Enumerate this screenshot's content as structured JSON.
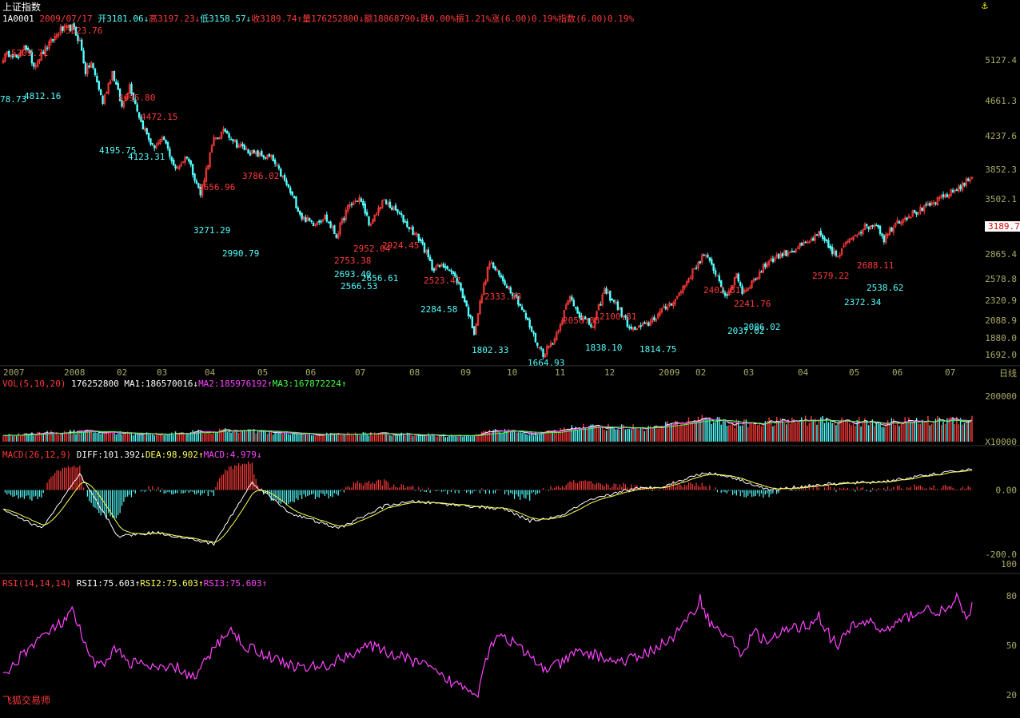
{
  "header": {
    "title": "上证指数",
    "code": "1A0001",
    "date": "2009/07/17",
    "fields": [
      {
        "text": "开3181.06",
        "color": "#55ffff",
        "arrow": "↓"
      },
      {
        "text": "高3197.23",
        "color": "#ff3b3b",
        "arrow": "↓"
      },
      {
        "text": "低3158.57",
        "color": "#55ffff",
        "arrow": "↓"
      },
      {
        "text": "收3189.74",
        "color": "#ff3b3b",
        "arrow": "↑"
      },
      {
        "text": "量176252800",
        "color": "#ff3b3b",
        "arrow": "↓"
      },
      {
        "text": "额18868790",
        "color": "#ff3b3b",
        "arrow": "↓"
      },
      {
        "text": "跌0.00%",
        "color": "#ff3b3b",
        "arrow": ""
      },
      {
        "text": "振1.21%",
        "color": "#ff3b3b",
        "arrow": ""
      },
      {
        "text": "涨(6.00)0.19%",
        "color": "#ff3b3b",
        "arrow": ""
      },
      {
        "text": "指数(6.00)0.19%",
        "color": "#ff3b3b",
        "arrow": ""
      }
    ]
  },
  "last_price_label": "3189.7",
  "price_axis_labels": [
    "5127.4",
    "4661.3",
    "4237.6",
    "3852.3",
    "3502.1",
    "2865.4",
    "2578.8",
    "2320.9",
    "2088.9",
    "1880.0",
    "1692.0"
  ],
  "time_axis": [
    "2007",
    "2008",
    "02",
    "03",
    "04",
    "05",
    "06",
    "07",
    "08",
    "09",
    "10",
    "11",
    "12",
    "2009",
    "02",
    "03",
    "04",
    "05",
    "06",
    "07"
  ],
  "time_axis_suffix": "日线",
  "annotations": [
    {
      "text": "5523.76",
      "color": "red"
    },
    {
      "text": "5209.71",
      "color": "red"
    },
    {
      "text": "78.73",
      "color": "cyan"
    },
    {
      "text": "4812.16",
      "color": "cyan"
    },
    {
      "text": "4695.80",
      "color": "red"
    },
    {
      "text": "4472.15",
      "color": "red"
    },
    {
      "text": "4195.75",
      "color": "cyan"
    },
    {
      "text": "4123.31",
      "color": "cyan"
    },
    {
      "text": "3656.96",
      "color": "red"
    },
    {
      "text": "3786.02",
      "color": "red"
    },
    {
      "text": "3271.29",
      "color": "cyan"
    },
    {
      "text": "2990.79",
      "color": "cyan"
    },
    {
      "text": "2952.04",
      "color": "red"
    },
    {
      "text": "2753.38",
      "color": "red"
    },
    {
      "text": "2924.45",
      "color": "red"
    },
    {
      "text": "2693.40",
      "color": "cyan"
    },
    {
      "text": "2656.61",
      "color": "cyan"
    },
    {
      "text": "2566.53",
      "color": "cyan"
    },
    {
      "text": "2523.47",
      "color": "red"
    },
    {
      "text": "2284.58",
      "color": "cyan"
    },
    {
      "text": "2333.28",
      "color": "red"
    },
    {
      "text": "1802.33",
      "color": "cyan"
    },
    {
      "text": "1664.93",
      "color": "cyan"
    },
    {
      "text": "2050.88",
      "color": "red"
    },
    {
      "text": "2100.81",
      "color": "red"
    },
    {
      "text": "1838.10",
      "color": "cyan"
    },
    {
      "text": "1814.75",
      "color": "cyan"
    },
    {
      "text": "2402.81",
      "color": "red"
    },
    {
      "text": "2241.76",
      "color": "red"
    },
    {
      "text": "2037.02",
      "color": "cyan"
    },
    {
      "text": "2086.02",
      "color": "cyan"
    },
    {
      "text": "2579.22",
      "color": "red"
    },
    {
      "text": "2372.34",
      "color": "cyan"
    },
    {
      "text": "2688.11",
      "color": "red"
    },
    {
      "text": "2538.62",
      "color": "cyan"
    }
  ],
  "vol_panel": {
    "title": "VOL(5,10,20)",
    "value": "176252800",
    "items": [
      {
        "text": "MA1:186570016",
        "color": "#ffffff",
        "arrow": "↓"
      },
      {
        "text": "MA2:185976192",
        "color": "#ff44ff",
        "arrow": "↑"
      },
      {
        "text": "MA3:167872224",
        "color": "#44ff44",
        "arrow": "↑"
      }
    ],
    "axis_top": "200000",
    "axis_unit": "X10000"
  },
  "macd_panel": {
    "title": "MACD(26,12,9)",
    "items": [
      {
        "text": "DIFF:101.392",
        "color": "#ffffff",
        "arrow": "↓"
      },
      {
        "text": "DEA:98.902",
        "color": "#ffff55",
        "arrow": "↑"
      },
      {
        "text": "MACD:4.979",
        "color": "#ff44ff",
        "arrow": "↓"
      }
    ],
    "axis_labels": [
      "0.00",
      "-200.0"
    ]
  },
  "rsi_panel": {
    "title": "RSI(14,14,14)",
    "items": [
      {
        "text": "RSI1:75.603",
        "color": "#ffffff",
        "arrow": "↑"
      },
      {
        "text": "RSI2:75.603",
        "color": "#ffff55",
        "arrow": "↑"
      },
      {
        "text": "RSI3:75.603",
        "color": "#ff44ff",
        "arrow": "↑"
      }
    ],
    "axis_labels": [
      "100",
      "80",
      "50",
      "20"
    ]
  },
  "brand": "飞狐交易师",
  "colors": {
    "up": "#ff3b3b",
    "down": "#55ffff",
    "axis": "#aaaa66",
    "rsi": "#ff44ff"
  },
  "chart_data": {
    "type": "line",
    "title": "上证指数",
    "y_scale": "log",
    "close_key_points": [
      [
        0,
        4950
      ],
      [
        4,
        5050
      ],
      [
        8,
        4900
      ],
      [
        11,
        5209.71
      ],
      [
        16,
        4812.16
      ],
      [
        22,
        5100
      ],
      [
        30,
        5480
      ],
      [
        36,
        5523.76
      ],
      [
        40,
        5250
      ],
      [
        43,
        4700
      ],
      [
        46,
        4850
      ],
      [
        52,
        4195.75
      ],
      [
        57,
        4695.8
      ],
      [
        62,
        4123.31
      ],
      [
        66,
        4472.15
      ],
      [
        72,
        3900
      ],
      [
        78,
        3560
      ],
      [
        84,
        3656.96
      ],
      [
        90,
        3271.29
      ],
      [
        96,
        3450
      ],
      [
        103,
        2990.79
      ],
      [
        110,
        3650
      ],
      [
        116,
        3786.02
      ],
      [
        122,
        3600
      ],
      [
        130,
        3480
      ],
      [
        140,
        3420
      ],
      [
        148,
        3100
      ],
      [
        156,
        2750
      ],
      [
        162,
        2693.4
      ],
      [
        168,
        2753.38
      ],
      [
        174,
        2566.53
      ],
      [
        180,
        2850
      ],
      [
        186,
        2952.04
      ],
      [
        192,
        2656.61
      ],
      [
        198,
        2924.45
      ],
      [
        206,
        2800
      ],
      [
        212,
        2650
      ],
      [
        218,
        2523.47
      ],
      [
        224,
        2284.58
      ],
      [
        232,
        2300
      ],
      [
        238,
        2150
      ],
      [
        246,
        1802.33
      ],
      [
        254,
        2333.28
      ],
      [
        260,
        2200
      ],
      [
        268,
        2050
      ],
      [
        278,
        1750
      ],
      [
        282,
        1664.93
      ],
      [
        288,
        1760
      ],
      [
        296,
        2050.88
      ],
      [
        302,
        1900
      ],
      [
        308,
        1838.1
      ],
      [
        314,
        2100.81
      ],
      [
        320,
        2000
      ],
      [
        328,
        1814.75
      ],
      [
        336,
        1850
      ],
      [
        344,
        1950
      ],
      [
        352,
        2050
      ],
      [
        360,
        2250
      ],
      [
        366,
        2402.81
      ],
      [
        372,
        2250
      ],
      [
        378,
        2037.02
      ],
      [
        383,
        2241.76
      ],
      [
        386,
        2086.02
      ],
      [
        392,
        2180
      ],
      [
        400,
        2350
      ],
      [
        410,
        2420
      ],
      [
        420,
        2500
      ],
      [
        426,
        2579.22
      ],
      [
        432,
        2450
      ],
      [
        436,
        2372.34
      ],
      [
        442,
        2550
      ],
      [
        450,
        2650
      ],
      [
        456,
        2688.11
      ],
      [
        460,
        2538.62
      ],
      [
        466,
        2700
      ],
      [
        474,
        2780
      ],
      [
        482,
        2850
      ],
      [
        490,
        2950
      ],
      [
        498,
        3050
      ],
      [
        506,
        3189.74
      ]
    ],
    "volume_key_points": [
      [
        0,
        26
      ],
      [
        40,
        40
      ],
      [
        80,
        30
      ],
      [
        120,
        45
      ],
      [
        160,
        28
      ],
      [
        200,
        32
      ],
      [
        240,
        22
      ],
      [
        260,
        45
      ],
      [
        280,
        30
      ],
      [
        300,
        60
      ],
      [
        340,
        55
      ],
      [
        366,
        95
      ],
      [
        380,
        70
      ],
      [
        420,
        85
      ],
      [
        460,
        75
      ],
      [
        506,
        90
      ]
    ],
    "volume_axis_max": 200000,
    "macd_key_points": [
      [
        0,
        -50
      ],
      [
        20,
        -100
      ],
      [
        40,
        40
      ],
      [
        60,
        -120
      ],
      [
        80,
        -110
      ],
      [
        110,
        -140
      ],
      [
        130,
        20
      ],
      [
        150,
        -60
      ],
      [
        175,
        -100
      ],
      [
        200,
        -40
      ],
      [
        215,
        -30
      ],
      [
        240,
        -40
      ],
      [
        262,
        -50
      ],
      [
        275,
        -80
      ],
      [
        290,
        -70
      ],
      [
        305,
        -30
      ],
      [
        325,
        0
      ],
      [
        345,
        10
      ],
      [
        366,
        45
      ],
      [
        380,
        35
      ],
      [
        400,
        0
      ],
      [
        430,
        15
      ],
      [
        460,
        22
      ],
      [
        506,
        55
      ]
    ],
    "macd_range": [
      -200,
      80
    ],
    "rsi_key_points": [
      [
        0,
        30
      ],
      [
        10,
        45
      ],
      [
        20,
        55
      ],
      [
        30,
        63
      ],
      [
        36,
        70
      ],
      [
        40,
        60
      ],
      [
        44,
        45
      ],
      [
        50,
        36
      ],
      [
        58,
        48
      ],
      [
        66,
        40
      ],
      [
        74,
        38
      ],
      [
        82,
        35
      ],
      [
        90,
        37
      ],
      [
        100,
        30
      ],
      [
        110,
        48
      ],
      [
        118,
        60
      ],
      [
        126,
        50
      ],
      [
        136,
        45
      ],
      [
        146,
        40
      ],
      [
        156,
        36
      ],
      [
        170,
        38
      ],
      [
        180,
        44
      ],
      [
        190,
        50
      ],
      [
        200,
        46
      ],
      [
        210,
        42
      ],
      [
        220,
        38
      ],
      [
        230,
        30
      ],
      [
        240,
        25
      ],
      [
        248,
        22
      ],
      [
        252,
        42
      ],
      [
        258,
        58
      ],
      [
        266,
        52
      ],
      [
        274,
        44
      ],
      [
        282,
        36
      ],
      [
        290,
        38
      ],
      [
        300,
        46
      ],
      [
        310,
        44
      ],
      [
        320,
        40
      ],
      [
        330,
        42
      ],
      [
        340,
        48
      ],
      [
        350,
        55
      ],
      [
        358,
        66
      ],
      [
        364,
        78
      ],
      [
        370,
        62
      ],
      [
        378,
        56
      ],
      [
        386,
        45
      ],
      [
        392,
        58
      ],
      [
        400,
        52
      ],
      [
        410,
        60
      ],
      [
        420,
        62
      ],
      [
        426,
        68
      ],
      [
        432,
        55
      ],
      [
        436,
        50
      ],
      [
        444,
        62
      ],
      [
        452,
        65
      ],
      [
        460,
        58
      ],
      [
        468,
        64
      ],
      [
        476,
        70
      ],
      [
        484,
        72
      ],
      [
        492,
        70
      ],
      [
        498,
        78
      ],
      [
        502,
        68
      ],
      [
        506,
        73
      ]
    ],
    "rsi_range": [
      20,
      100
    ],
    "n_bars": 507
  }
}
